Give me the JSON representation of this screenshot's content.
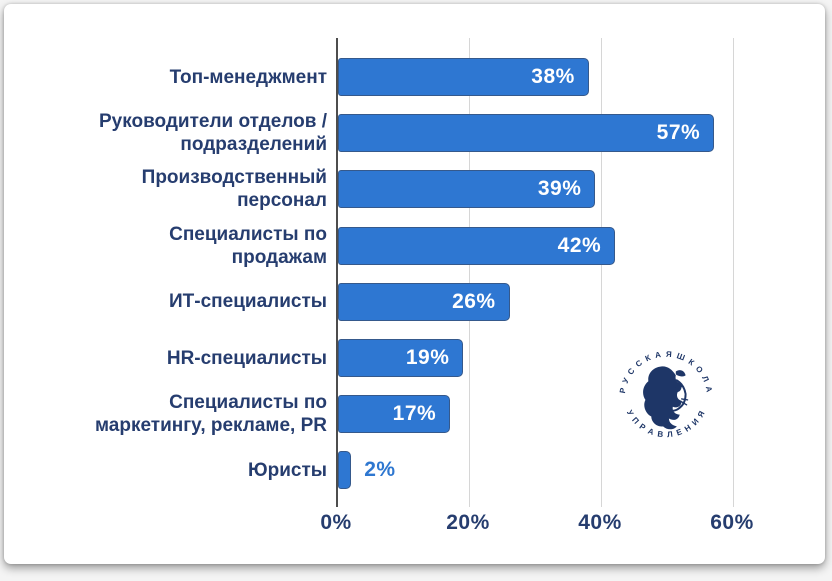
{
  "chart_data": {
    "type": "bar",
    "orientation": "horizontal",
    "title": "",
    "xlabel": "",
    "ylabel": "",
    "categories": [
      "Топ-менеджмент",
      "Руководители отделов /\nподразделений",
      "Производственный\nперсонал",
      "Специалисты по\nпродажам",
      "ИТ-специалисты",
      "HR-специалисты",
      "Специалисты по\nмаркетингу, рекламе, PR",
      "Юристы"
    ],
    "values": [
      38,
      57,
      39,
      42,
      26,
      19,
      17,
      2
    ],
    "value_labels": [
      "38%",
      "57%",
      "39%",
      "42%",
      "26%",
      "19%",
      "17%",
      "2%"
    ],
    "xlim": [
      0,
      70
    ],
    "x_ticks": [
      {
        "value": 0,
        "label": "0%"
      },
      {
        "value": 20,
        "label": "20%"
      },
      {
        "value": 40,
        "label": "40%"
      },
      {
        "value": 60,
        "label": "60%"
      }
    ],
    "grid": "vertical-gridlines-on",
    "legend": "none",
    "colors": {
      "bar_fill": "#2e77d2",
      "bar_border": "#35598c",
      "category_text": "#263d6f",
      "tick_text": "#263d6f",
      "value_text_inside": "#ffffff",
      "value_text_outside": "#2e77d0",
      "gridline": "#d6d6d6",
      "axis_line": "#4d4d4d",
      "card_background": "#ffffff"
    }
  },
  "logo": {
    "top_text": "•  Р У С С К А Я   Ш К О Л А  •",
    "bottom_text": "У П Р А В Л Е Н И Я",
    "color": "#1e3667"
  }
}
